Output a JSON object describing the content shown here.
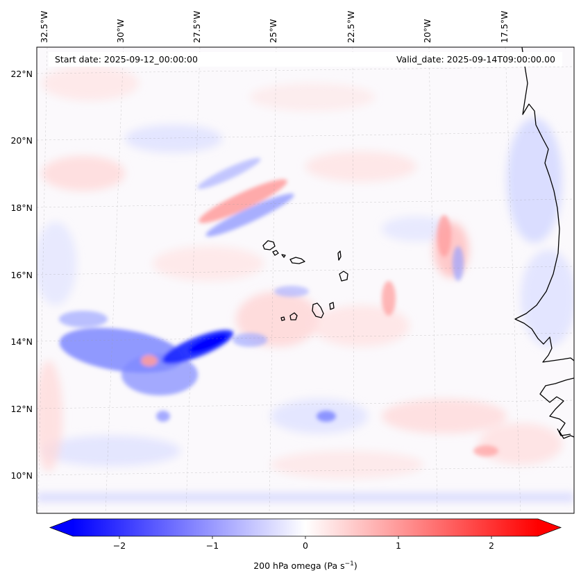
{
  "header": {
    "start_label": "Start date: 2025-09-12_00:00:00",
    "valid_label": "Valid_date: 2025-09-14T09:00:00.00"
  },
  "map": {
    "lon_labels": [
      "32.5°W",
      "30°W",
      "27.5°W",
      "25°W",
      "22.5°W",
      "20°W",
      "17.5°W"
    ],
    "lat_labels": [
      "22°N",
      "20°N",
      "18°N",
      "16°N",
      "14°N",
      "12°N",
      "10°N"
    ],
    "lon_range": [
      -32.6,
      -15.8
    ],
    "lat_range": [
      8.9,
      22.8
    ],
    "gridlines": true
  },
  "colorbar": {
    "ticks": [
      "−2",
      "−1",
      "0",
      "1",
      "2"
    ],
    "tick_values": [
      -2,
      -1,
      0,
      1,
      2
    ],
    "range": [
      -2.5,
      2.5
    ],
    "label_main": "200 hPa omega (Pa s",
    "label_sup": "−1",
    "label_end": ")",
    "colors": {
      "negative": "#0000ff",
      "zero": "#ffffff",
      "positive": "#ff0000"
    }
  }
}
